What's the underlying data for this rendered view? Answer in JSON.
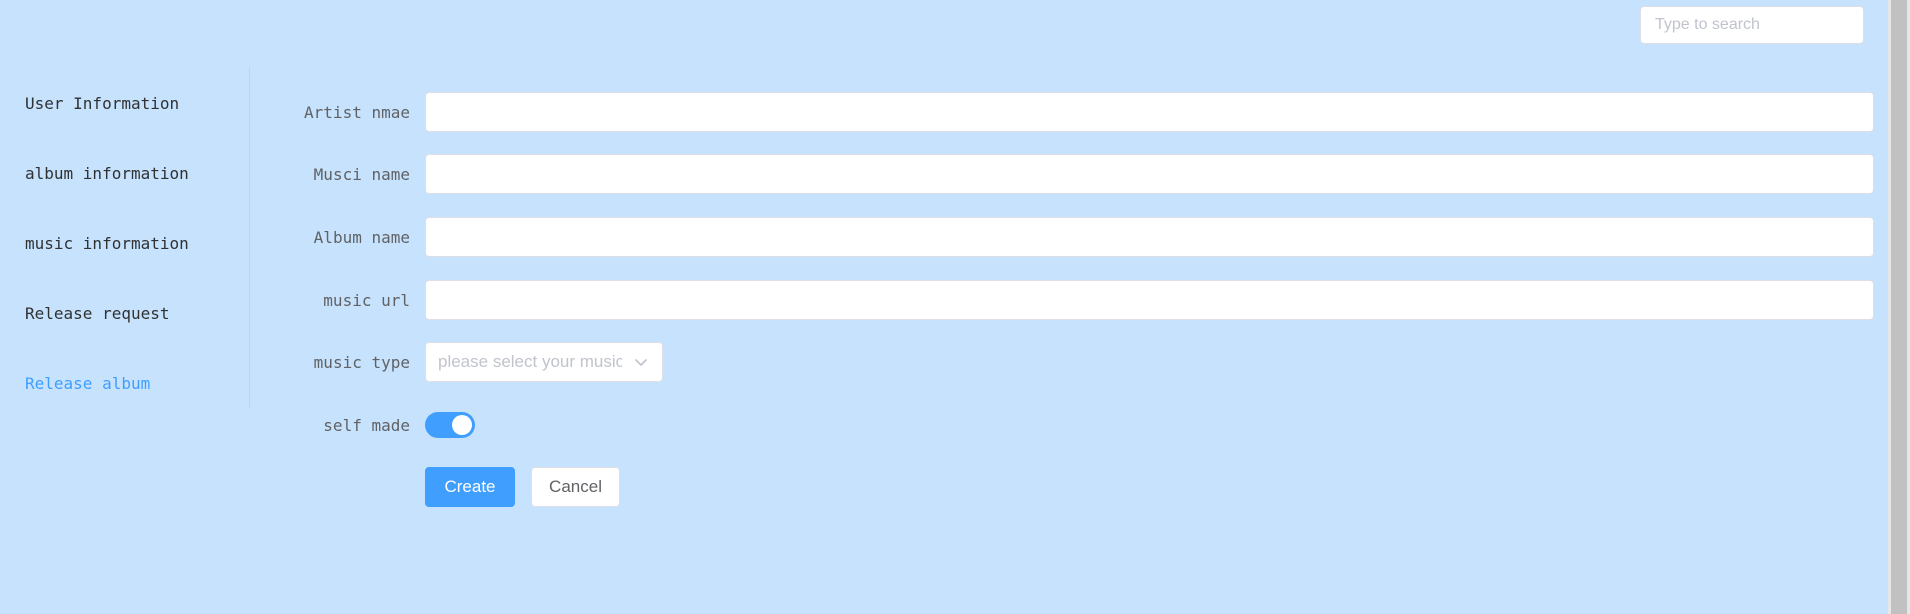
{
  "search": {
    "placeholder": "Type to search"
  },
  "sidebar": {
    "items": [
      {
        "label": "User Information"
      },
      {
        "label": "album information"
      },
      {
        "label": "music information"
      },
      {
        "label": "Release request"
      },
      {
        "label": "Release album"
      }
    ],
    "active_index": 4
  },
  "form": {
    "artist_name": {
      "label": "Artist nmae",
      "value": ""
    },
    "music_name": {
      "label": "Musci name",
      "value": ""
    },
    "album_name": {
      "label": "Album name",
      "value": ""
    },
    "music_url": {
      "label": "music url",
      "value": ""
    },
    "music_type": {
      "label": "music type",
      "placeholder": "please select your music type"
    },
    "self_made": {
      "label": "self made",
      "value": true
    },
    "create_label": "Create",
    "cancel_label": "Cancel"
  },
  "colors": {
    "background": "#c6e2fc",
    "accent": "#409eff"
  }
}
